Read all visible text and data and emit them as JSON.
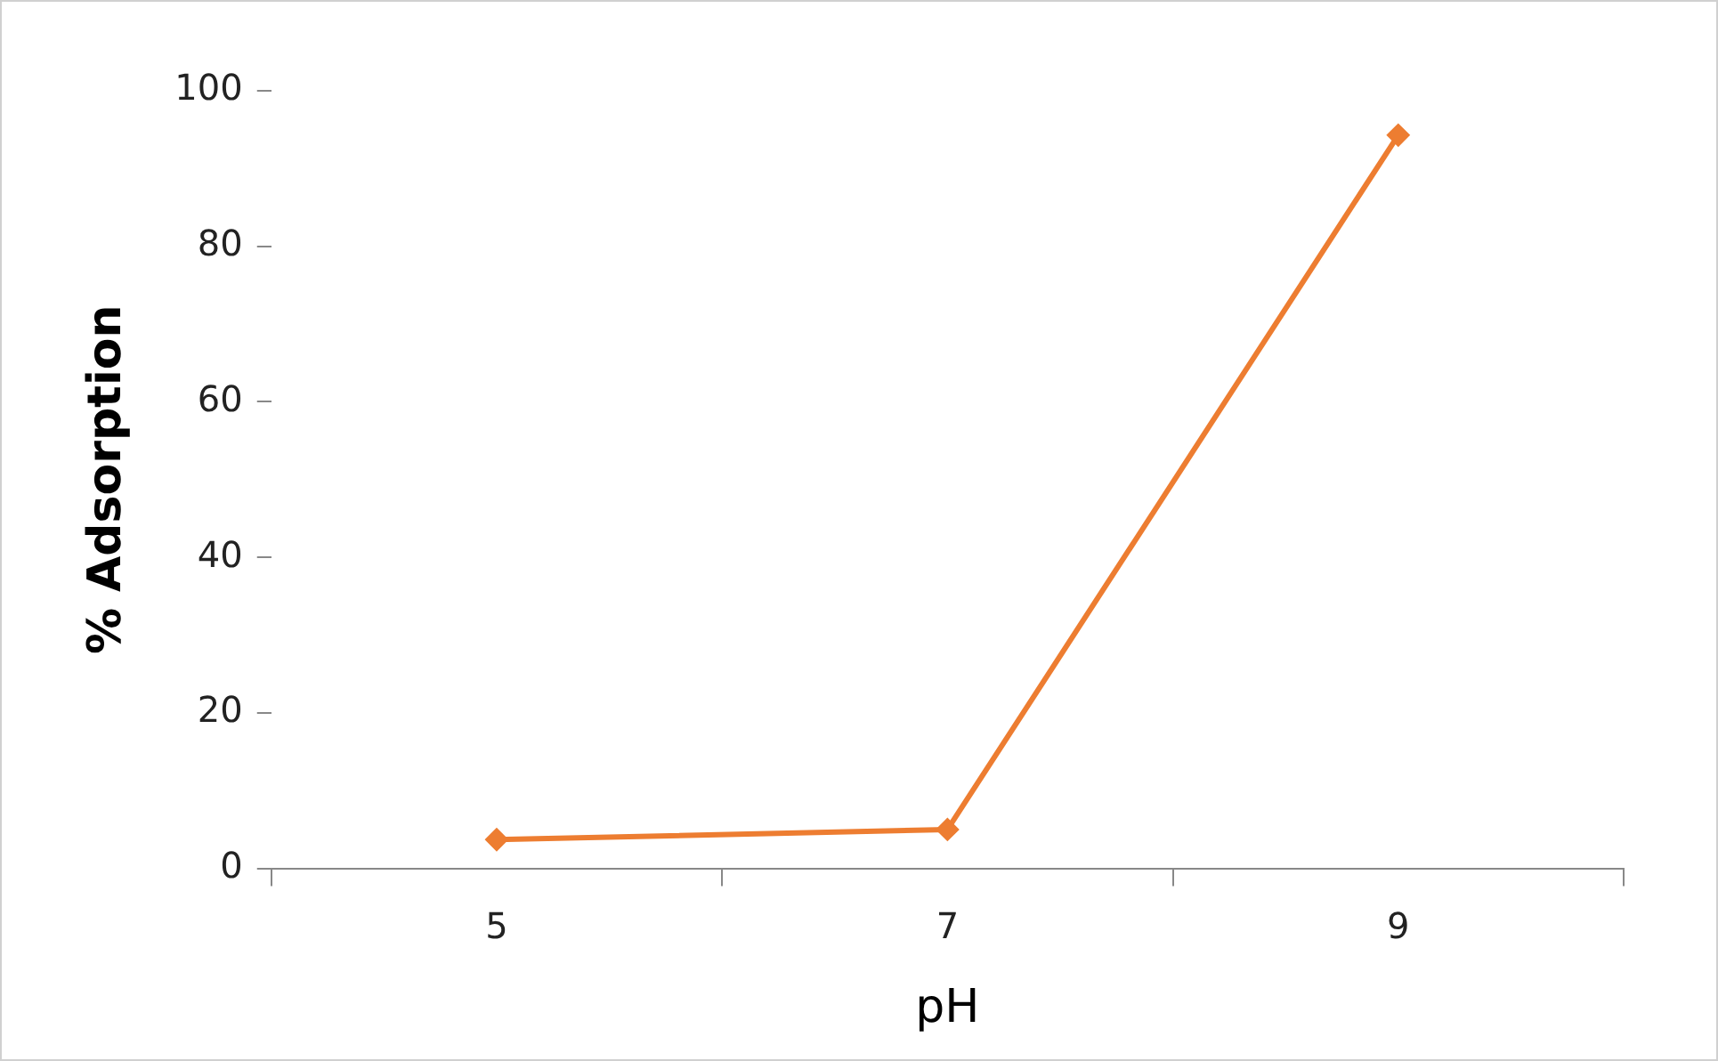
{
  "chart_data": {
    "type": "line",
    "xlabel": "pH",
    "ylabel": "% Adsorption",
    "categories": [
      "5",
      "7",
      "9"
    ],
    "series": [
      {
        "color": "#ed7d31",
        "values": [
          3.7,
          5.0,
          94.3
        ]
      }
    ],
    "ylim": [
      0,
      100
    ],
    "yticks": [
      0,
      20,
      40,
      60,
      80,
      100
    ],
    "grid": false,
    "legend": false,
    "marker": "diamond",
    "line_style": "solid"
  }
}
